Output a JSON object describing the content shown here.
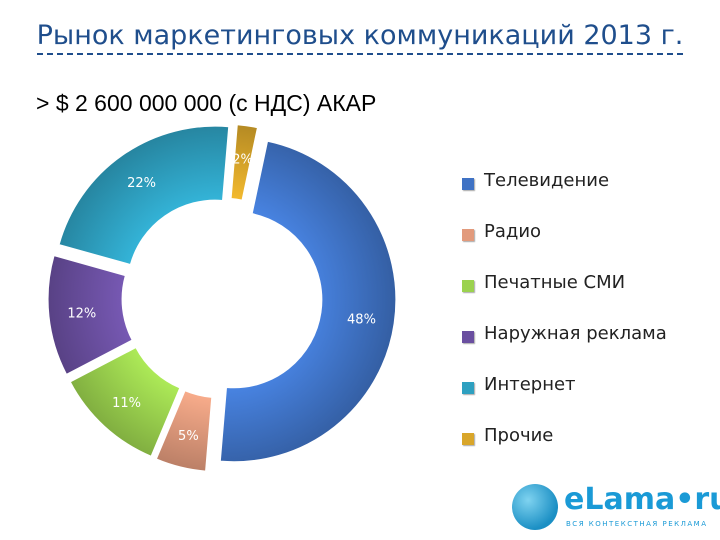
{
  "title": "Рынок маркетинговых коммуникаций 2013 г.",
  "subtitle": "> $ 2 600 000 000 (с НДС) АКАР",
  "colors": {
    "title": "#1f4e8c",
    "television": "#3f72c4",
    "radio": "#e29a7c",
    "print_media": "#9bd24e",
    "outdoor": "#6a4fa0",
    "internet": "#2ea0c0",
    "other": "#d9a62a"
  },
  "chart_data": {
    "type": "pie",
    "donut": true,
    "exploded": true,
    "categories": [
      "Телевидение",
      "Радио",
      "Печатные СМИ",
      "Наружная реклама",
      "Интернет",
      "Прочие"
    ],
    "values": [
      48,
      5,
      11,
      12,
      22,
      2
    ],
    "data_labels": [
      "48%",
      "5%",
      "11%",
      "12%",
      "22%",
      "2%"
    ],
    "legend_position": "right"
  },
  "logo": {
    "wordmark": "eLama•ru",
    "tagline": "ВСЯ КОНТЕКСТНАЯ РЕКЛАМА"
  }
}
